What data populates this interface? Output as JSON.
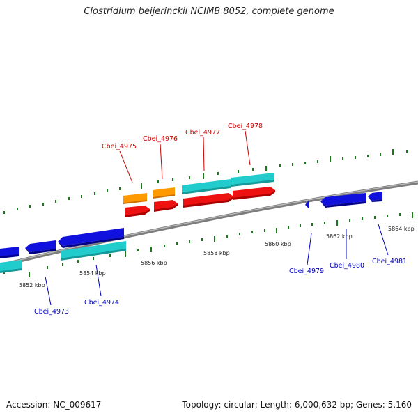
{
  "title": "Clostridium beijerinckii NCIMB 8052, complete genome",
  "footer": {
    "accession": "Accession: NC_009617",
    "summary": "Topology: circular; Length: 6,000,632 bp; Genes: 5,160"
  },
  "colors": {
    "backbone": "#8a8a8a",
    "tick": "#1a7a1a",
    "forward_label": "#cc0000",
    "reverse_label": "#0000bb",
    "forward_cds": "#ee1111",
    "forward_gene": "#22cccc",
    "forward_other": "#ff9900",
    "reverse_cds": "#1111dd",
    "reverse_gene": "#22cccc"
  },
  "position_labels": [
    "5852 kbp",
    "5854 kbp",
    "5856 kbp",
    "5858 kbp",
    "5860 kbp",
    "5862 kbp",
    "5864 kbp"
  ],
  "forward_genes": [
    "Cbei_4975",
    "Cbei_4976",
    "Cbei_4977",
    "Cbei_4978"
  ],
  "reverse_genes": [
    "Cbei_4973",
    "Cbei_4974",
    "Cbei_4979",
    "Cbei_4980",
    "Cbei_4981"
  ]
}
